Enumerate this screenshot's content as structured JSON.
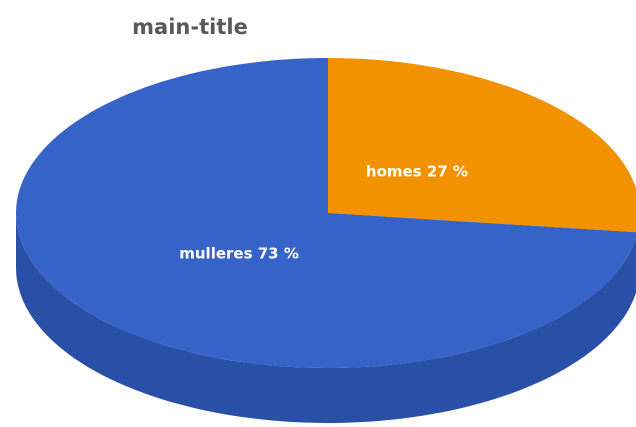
{
  "chart_data": {
    "type": "pie",
    "title": "main-title",
    "categories": [
      "homes",
      "mulleres"
    ],
    "values": [
      27,
      73
    ],
    "value_labels": [
      "homes 27 %",
      "mulleres 73 %"
    ],
    "colors": [
      "#f39200",
      "#3563c8"
    ],
    "side_colors": [
      "#b96f00",
      "#2a4fa6"
    ]
  }
}
